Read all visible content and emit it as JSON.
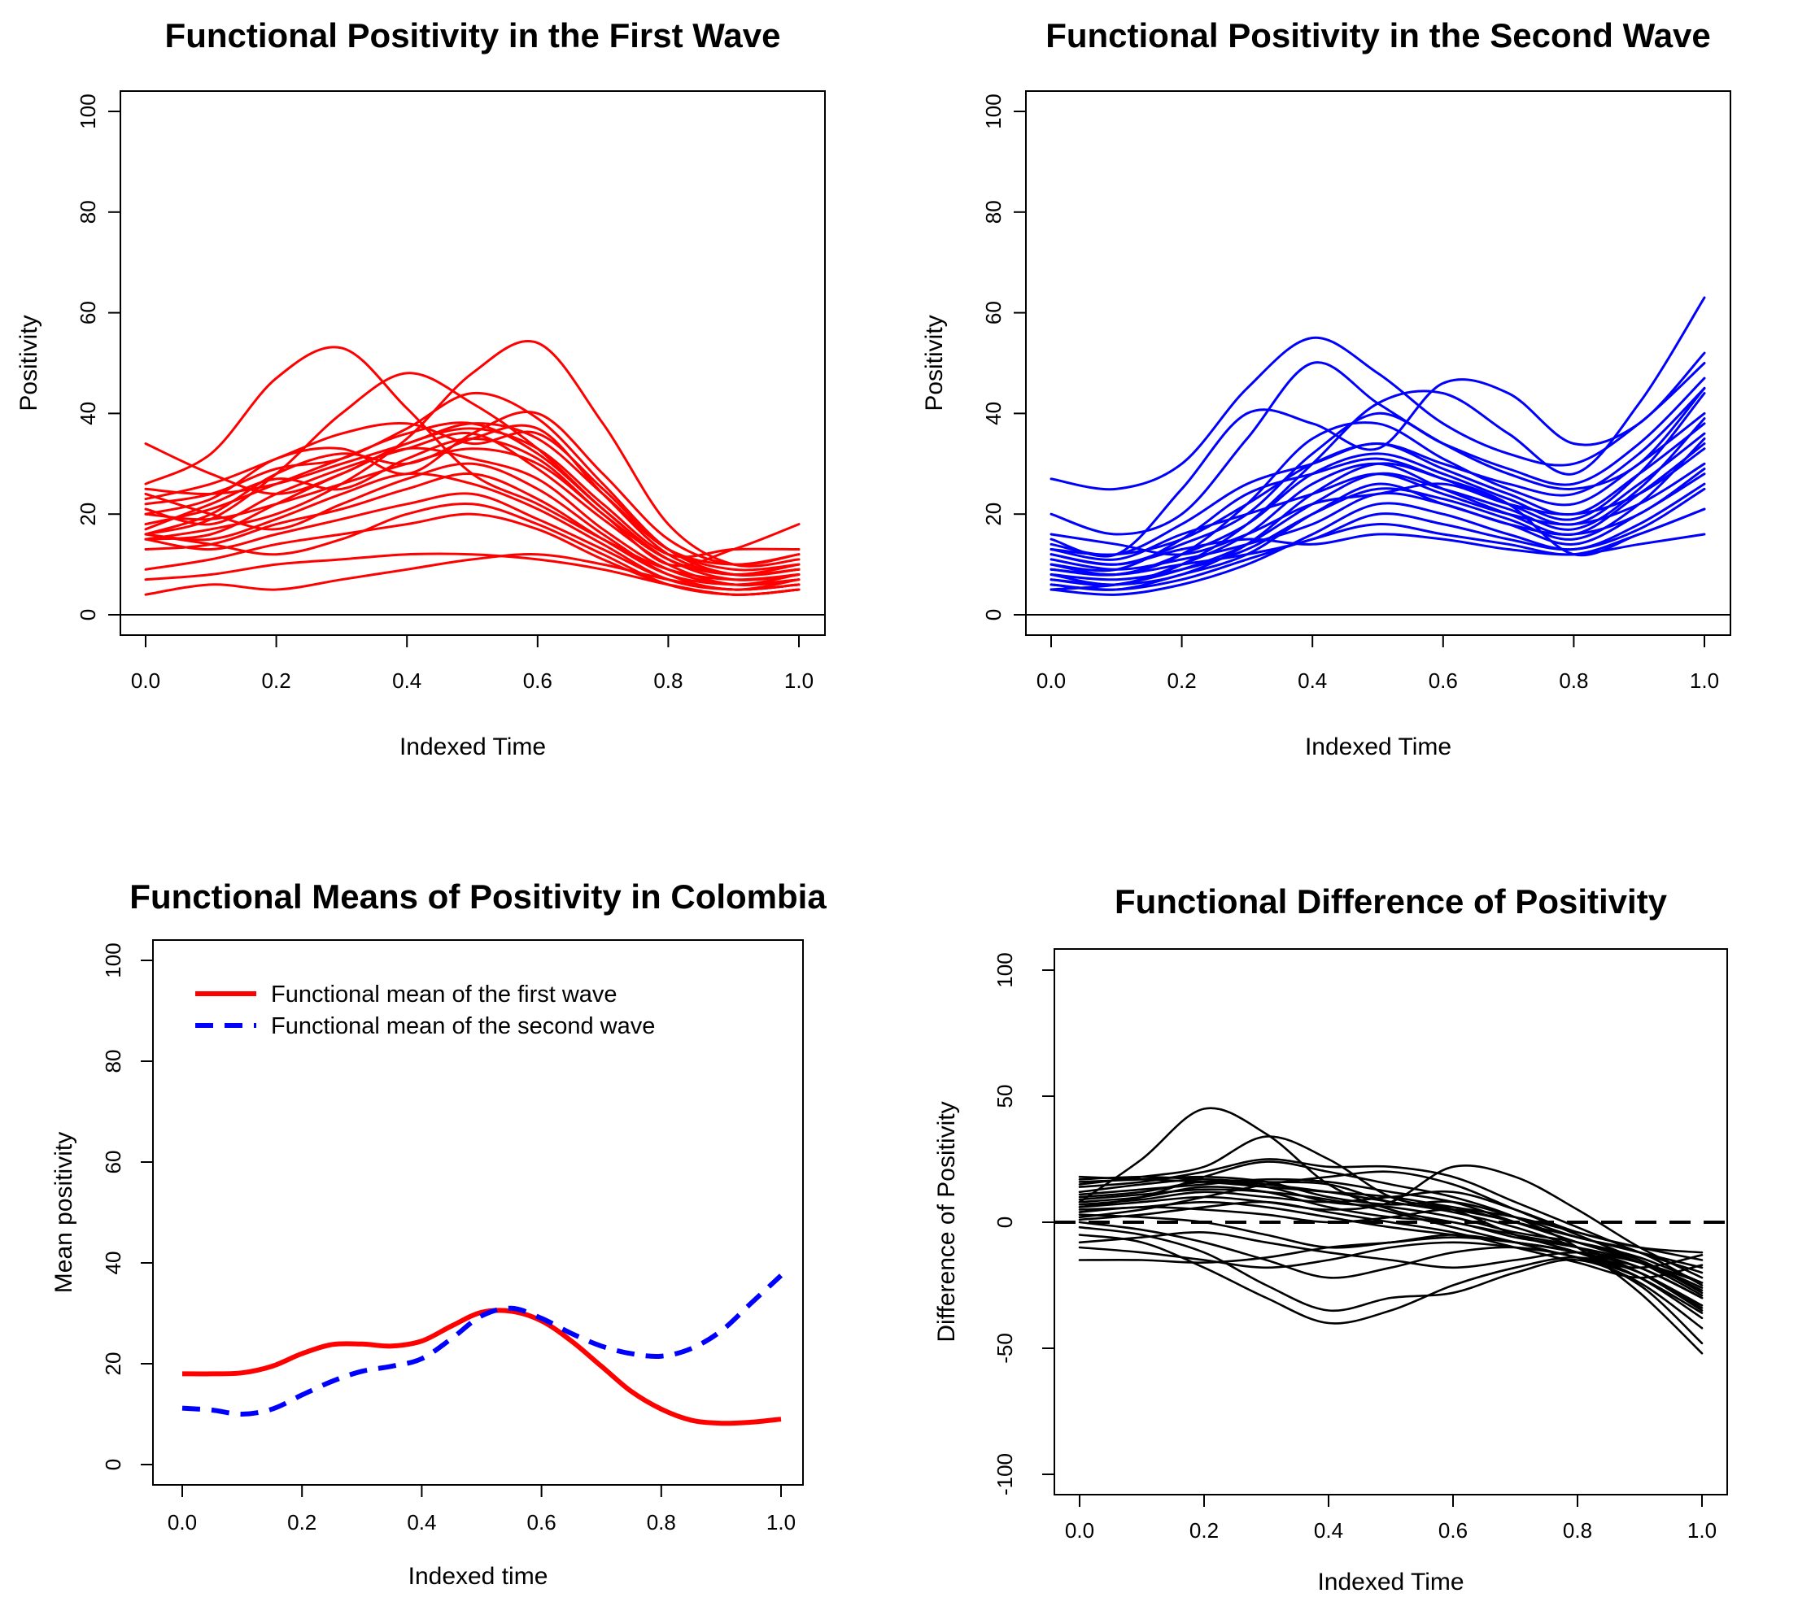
{
  "colors": {
    "red": "#FF0000",
    "blue": "#0000FF",
    "black": "#000000"
  },
  "chart_data": [
    {
      "id": "first-wave",
      "type": "line",
      "title": "Functional Positivity in the First Wave",
      "xlabel": "Indexed Time",
      "ylabel": "Positivity",
      "xlim": [
        0,
        1
      ],
      "ylim": [
        0,
        100
      ],
      "xticks": [
        0.0,
        0.2,
        0.4,
        0.6,
        0.8,
        1.0
      ],
      "yticks": [
        0,
        20,
        40,
        60,
        80,
        100
      ],
      "grid": false,
      "line_color": "#FF0000",
      "line_width": 3,
      "zero_line": {
        "y": 0,
        "style": "solid",
        "color": "#000000",
        "width": 2
      },
      "x": [
        0,
        0.1,
        0.2,
        0.3,
        0.4,
        0.5,
        0.6,
        0.7,
        0.8,
        0.9,
        1.0
      ],
      "series": [
        [
          34,
          28,
          24,
          28,
          34,
          37,
          33,
          22,
          12,
          13,
          13
        ],
        [
          26,
          32,
          47,
          53,
          41,
          28,
          22,
          15,
          9,
          7,
          8
        ],
        [
          16,
          19,
          28,
          40,
          48,
          42,
          33,
          21,
          11,
          8,
          9
        ],
        [
          15,
          17,
          20,
          26,
          35,
          48,
          54,
          38,
          18,
          10,
          11
        ],
        [
          22,
          24,
          29,
          31,
          37,
          44,
          39,
          26,
          13,
          8,
          9
        ],
        [
          20,
          23,
          31,
          33,
          28,
          36,
          40,
          28,
          15,
          10,
          12
        ],
        [
          23,
          26,
          31,
          36,
          38,
          34,
          36,
          25,
          13,
          9,
          10
        ],
        [
          18,
          21,
          26,
          31,
          36,
          38,
          32,
          21,
          11,
          7,
          8
        ],
        [
          16,
          20,
          28,
          32,
          30,
          35,
          37,
          24,
          12,
          8,
          9
        ],
        [
          21,
          18,
          24,
          29,
          33,
          36,
          29,
          19,
          10,
          6,
          7
        ],
        [
          17,
          22,
          27,
          25,
          31,
          35,
          31,
          20,
          11,
          8,
          10
        ],
        [
          15,
          16,
          22,
          28,
          33,
          31,
          27,
          17,
          9,
          6,
          8
        ],
        [
          24,
          20,
          17,
          22,
          27,
          30,
          25,
          16,
          8,
          5,
          7
        ],
        [
          16,
          15,
          19,
          24,
          28,
          26,
          21,
          14,
          7,
          5,
          6
        ],
        [
          13,
          14,
          18,
          21,
          25,
          28,
          23,
          15,
          8,
          6,
          7
        ],
        [
          15,
          13,
          16,
          19,
          22,
          24,
          19,
          13,
          7,
          5,
          6
        ],
        [
          9,
          11,
          14,
          16,
          18,
          20,
          17,
          11,
          6,
          4,
          5
        ],
        [
          7,
          8,
          10,
          11,
          12,
          12,
          11,
          9,
          6,
          4,
          5
        ],
        [
          4,
          6,
          5,
          7,
          9,
          11,
          12,
          10,
          7,
          5,
          6
        ],
        [
          16,
          14,
          12,
          15,
          20,
          22,
          18,
          12,
          6,
          4,
          5
        ],
        [
          25,
          24,
          26,
          30,
          34,
          38,
          35,
          24,
          13,
          10,
          12
        ],
        [
          20,
          19,
          22,
          26,
          30,
          33,
          30,
          20,
          10,
          13,
          18
        ]
      ]
    },
    {
      "id": "second-wave",
      "type": "line",
      "title": "Functional Positivity in the Second Wave",
      "xlabel": "Indexed Time",
      "ylabel": "Positivity",
      "xlim": [
        0,
        1
      ],
      "ylim": [
        0,
        100
      ],
      "xticks": [
        0.0,
        0.2,
        0.4,
        0.6,
        0.8,
        1.0
      ],
      "yticks": [
        0,
        20,
        40,
        60,
        80,
        100
      ],
      "grid": false,
      "line_color": "#0000FF",
      "line_width": 3,
      "zero_line": {
        "y": 0,
        "style": "solid",
        "color": "#000000",
        "width": 2
      },
      "x": [
        0,
        0.1,
        0.2,
        0.3,
        0.4,
        0.5,
        0.6,
        0.7,
        0.8,
        0.9,
        1.0
      ],
      "series": [
        [
          27,
          25,
          30,
          45,
          55,
          48,
          38,
          32,
          30,
          38,
          50
        ],
        [
          20,
          16,
          20,
          35,
          50,
          42,
          34,
          28,
          25,
          30,
          45
        ],
        [
          15,
          12,
          25,
          40,
          38,
          33,
          46,
          44,
          34,
          38,
          52
        ],
        [
          8,
          6,
          10,
          18,
          30,
          42,
          44,
          36,
          28,
          42,
          63
        ],
        [
          12,
          10,
          14,
          20,
          32,
          40,
          34,
          29,
          26,
          34,
          47
        ],
        [
          9,
          8,
          12,
          22,
          35,
          38,
          31,
          25,
          22,
          30,
          40
        ],
        [
          14,
          12,
          18,
          26,
          30,
          34,
          29,
          24,
          20,
          28,
          38
        ],
        [
          10,
          9,
          15,
          24,
          28,
          31,
          27,
          22,
          18,
          26,
          36
        ],
        [
          7,
          6,
          10,
          16,
          26,
          30,
          25,
          20,
          16,
          24,
          34
        ],
        [
          13,
          11,
          16,
          20,
          24,
          28,
          24,
          20,
          18,
          22,
          30
        ],
        [
          6,
          5,
          8,
          12,
          20,
          26,
          22,
          18,
          14,
          20,
          28
        ],
        [
          16,
          14,
          12,
          16,
          22,
          24,
          26,
          22,
          20,
          24,
          33
        ],
        [
          5,
          4,
          6,
          10,
          16,
          22,
          20,
          16,
          13,
          18,
          26
        ],
        [
          11,
          9,
          11,
          14,
          18,
          24,
          22,
          18,
          16,
          20,
          29
        ],
        [
          8,
          7,
          9,
          13,
          20,
          25,
          23,
          19,
          15,
          22,
          35
        ],
        [
          6,
          5,
          7,
          11,
          15,
          18,
          16,
          14,
          12,
          16,
          21
        ],
        [
          12,
          10,
          13,
          15,
          14,
          16,
          15,
          13,
          12,
          14,
          16
        ],
        [
          9,
          8,
          10,
          12,
          15,
          20,
          18,
          15,
          13,
          17,
          25
        ],
        [
          5,
          6,
          9,
          14,
          22,
          28,
          25,
          21,
          17,
          25,
          39
        ],
        [
          10,
          8,
          12,
          18,
          28,
          32,
          28,
          23,
          19,
          28,
          44
        ],
        [
          7,
          6,
          8,
          14,
          24,
          30,
          27,
          22,
          12,
          16,
          21
        ],
        [
          13,
          12,
          15,
          22,
          30,
          34,
          30,
          26,
          24,
          32,
          45
        ]
      ]
    },
    {
      "id": "means",
      "type": "line",
      "title": "Functional Means of Positivity in Colombia",
      "xlabel": "Indexed time",
      "ylabel": "Mean positivity",
      "xlim": [
        0,
        1
      ],
      "ylim": [
        0,
        100
      ],
      "xticks": [
        0.0,
        0.2,
        0.4,
        0.6,
        0.8,
        1.0
      ],
      "yticks": [
        0,
        20,
        40,
        60,
        80,
        100
      ],
      "grid": false,
      "line_width": 6,
      "x": [
        0,
        0.05,
        0.1,
        0.15,
        0.2,
        0.25,
        0.3,
        0.35,
        0.4,
        0.45,
        0.5,
        0.55,
        0.6,
        0.65,
        0.7,
        0.75,
        0.8,
        0.85,
        0.9,
        0.95,
        1.0
      ],
      "named_series": [
        {
          "name": "Functional mean of the first wave",
          "color": "#FF0000",
          "dash": "solid",
          "values": [
            18,
            18,
            18.2,
            19.5,
            22,
            23.8,
            23.9,
            23.5,
            24.5,
            27.5,
            30.2,
            30.4,
            28.5,
            24.5,
            19.5,
            14.5,
            11,
            8.8,
            8.2,
            8.4,
            9
          ]
        },
        {
          "name": "Functional mean of the second wave",
          "color": "#0000FF",
          "dash": "dashed",
          "values": [
            11.2,
            10.8,
            10,
            11,
            13.8,
            16.5,
            18.5,
            19.5,
            21,
            25,
            29.5,
            31,
            29,
            26,
            23.5,
            22,
            21.5,
            23,
            26.5,
            32,
            37.5
          ]
        }
      ],
      "legend": {
        "position": "top-left",
        "entries": [
          {
            "label": "Functional mean of the first wave",
            "color": "#FF0000",
            "dash": "solid"
          },
          {
            "label": "Functional mean of the second wave",
            "color": "#0000FF",
            "dash": "dashed"
          }
        ]
      }
    },
    {
      "id": "difference",
      "type": "line",
      "title": "Functional Difference of Positivity",
      "xlabel": "Indexed Time",
      "ylabel": "Difference of Positivity",
      "xlim": [
        0,
        1
      ],
      "ylim": [
        -100,
        100
      ],
      "xticks": [
        0.0,
        0.2,
        0.4,
        0.6,
        0.8,
        1.0
      ],
      "yticks": [
        -100,
        -50,
        0,
        50,
        100
      ],
      "grid": false,
      "line_color": "#000000",
      "line_width": 2.6,
      "zero_line": {
        "y": 0,
        "style": "dashed",
        "color": "#000000",
        "width": 4
      },
      "x": [
        0,
        0.1,
        0.2,
        0.3,
        0.4,
        0.5,
        0.6,
        0.7,
        0.8,
        0.9,
        1.0
      ],
      "series": [
        [
          8,
          25,
          45,
          35,
          15,
          5,
          0,
          -5,
          -10,
          -20,
          -35
        ],
        [
          15,
          18,
          22,
          34,
          25,
          10,
          5,
          -5,
          -12,
          -22,
          -38
        ],
        [
          17,
          18,
          17,
          16,
          15,
          8,
          5,
          0,
          -8,
          -15,
          -28
        ],
        [
          16,
          17,
          18,
          16,
          10,
          7,
          8,
          2,
          -6,
          -12,
          -25
        ],
        [
          12,
          15,
          17,
          15,
          12,
          8,
          4,
          -2,
          -10,
          -18,
          -30
        ],
        [
          10,
          12,
          16,
          14,
          8,
          6,
          2,
          -4,
          -8,
          -14,
          -24
        ],
        [
          8,
          10,
          14,
          12,
          6,
          2,
          0,
          -6,
          -10,
          -16,
          -27
        ],
        [
          6,
          8,
          10,
          8,
          5,
          8,
          22,
          18,
          5,
          -10,
          -22
        ],
        [
          5,
          6,
          8,
          6,
          2,
          -2,
          -5,
          -8,
          -12,
          -18,
          -30
        ],
        [
          3,
          2,
          0,
          -5,
          -10,
          -8,
          -5,
          -8,
          -12,
          -20,
          -33
        ],
        [
          0,
          -3,
          -8,
          -15,
          -22,
          -18,
          -12,
          -10,
          -14,
          -22,
          -36
        ],
        [
          -2,
          -5,
          -12,
          -25,
          -35,
          -30,
          -28,
          -20,
          -15,
          -25,
          -48
        ],
        [
          -5,
          -8,
          -18,
          -30,
          -40,
          -35,
          -25,
          -18,
          -14,
          -20,
          -34
        ],
        [
          -10,
          -12,
          -15,
          -18,
          -15,
          -10,
          -8,
          -10,
          -14,
          -24,
          -42
        ],
        [
          -15,
          -15,
          -16,
          -14,
          -10,
          -8,
          -6,
          -8,
          -12,
          -18,
          -30
        ],
        [
          2,
          5,
          10,
          15,
          18,
          20,
          15,
          5,
          -5,
          -15,
          -26
        ],
        [
          14,
          16,
          20,
          25,
          22,
          22,
          18,
          8,
          -2,
          -12,
          -20
        ],
        [
          7,
          9,
          12,
          10,
          8,
          10,
          12,
          5,
          -4,
          -10,
          -15
        ],
        [
          4,
          6,
          5,
          3,
          0,
          2,
          5,
          0,
          -6,
          -12,
          -18
        ],
        [
          11,
          13,
          15,
          17,
          16,
          12,
          8,
          0,
          -8,
          -16,
          -29
        ],
        [
          -8,
          -6,
          -4,
          -8,
          -12,
          -15,
          -18,
          -15,
          -12,
          -16,
          -24
        ],
        [
          18,
          17,
          16,
          14,
          12,
          10,
          6,
          2,
          -4,
          -10,
          -12
        ],
        [
          6,
          10,
          18,
          24,
          20,
          15,
          10,
          2,
          -10,
          -28,
          -52
        ],
        [
          9,
          11,
          13,
          12,
          9,
          4,
          -2,
          -8,
          -14,
          -18,
          -13
        ],
        [
          1,
          3,
          6,
          8,
          4,
          0,
          -4,
          -10,
          -16,
          -22,
          -17
        ]
      ]
    }
  ]
}
